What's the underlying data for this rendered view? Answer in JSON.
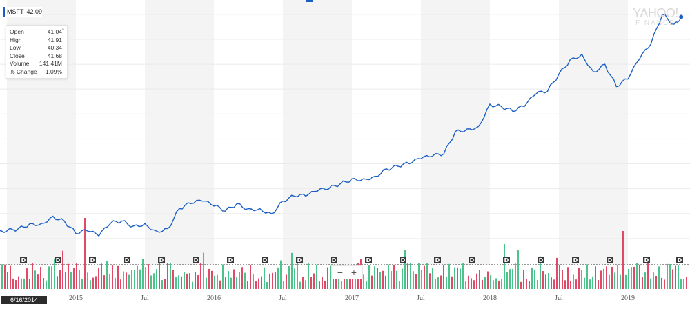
{
  "ticker": {
    "symbol": "MSFT",
    "last_price": "42.09"
  },
  "tooltip": {
    "rows": [
      {
        "label": "Open",
        "value": "41.04"
      },
      {
        "label": "High",
        "value": "41.91"
      },
      {
        "label": "Low",
        "value": "40.34"
      },
      {
        "label": "Close",
        "value": "41.68"
      },
      {
        "label": "Volume",
        "value": "141.41M"
      },
      {
        "label": "% Change",
        "value": "1.09%"
      }
    ],
    "close_glyph": "×"
  },
  "logo": {
    "line1": "YAHOO!",
    "line2": "FINANCE"
  },
  "zoom": {
    "minus": "−",
    "plus": "+"
  },
  "crosshair_date": "6/16/2014",
  "colors": {
    "line": "#1a5fc4",
    "volume_up": "#4cc38a",
    "volume_down": "#e04a66",
    "band": "#f4f4f4"
  },
  "chart_data": {
    "type": "line",
    "title": "",
    "xlabel": "",
    "ylabel": "",
    "x_range": [
      "2014-06",
      "2019-05"
    ],
    "y_range_approx": [
      38,
      130
    ],
    "x_tick_labels": [
      "2015",
      "Jul",
      "2016",
      "Jul",
      "2017",
      "Jul",
      "2018",
      "Jul",
      "2019"
    ],
    "grid": true,
    "series": [
      {
        "values": [
          {
            "x": "2014-06",
            "y": 42
          },
          {
            "x": "2014-07",
            "y": 43
          },
          {
            "x": "2014-08",
            "y": 44
          },
          {
            "x": "2014-09",
            "y": 46
          },
          {
            "x": "2014-10",
            "y": 46
          },
          {
            "x": "2014-11",
            "y": 49
          },
          {
            "x": "2014-12",
            "y": 47
          },
          {
            "x": "2015-01",
            "y": 42
          },
          {
            "x": "2015-02",
            "y": 43
          },
          {
            "x": "2015-03",
            "y": 41
          },
          {
            "x": "2015-04",
            "y": 46
          },
          {
            "x": "2015-05",
            "y": 47
          },
          {
            "x": "2015-06",
            "y": 45
          },
          {
            "x": "2015-07",
            "y": 46
          },
          {
            "x": "2015-08",
            "y": 43
          },
          {
            "x": "2015-09",
            "y": 44
          },
          {
            "x": "2015-10",
            "y": 52
          },
          {
            "x": "2015-11",
            "y": 54
          },
          {
            "x": "2015-12",
            "y": 55
          },
          {
            "x": "2016-01",
            "y": 53
          },
          {
            "x": "2016-02",
            "y": 51
          },
          {
            "x": "2016-03",
            "y": 54
          },
          {
            "x": "2016-04",
            "y": 52
          },
          {
            "x": "2016-05",
            "y": 52
          },
          {
            "x": "2016-06",
            "y": 50
          },
          {
            "x": "2016-07",
            "y": 55
          },
          {
            "x": "2016-08",
            "y": 57
          },
          {
            "x": "2016-09",
            "y": 57
          },
          {
            "x": "2016-10",
            "y": 59
          },
          {
            "x": "2016-11",
            "y": 60
          },
          {
            "x": "2016-12",
            "y": 62
          },
          {
            "x": "2017-01",
            "y": 64
          },
          {
            "x": "2017-02",
            "y": 64
          },
          {
            "x": "2017-03",
            "y": 65
          },
          {
            "x": "2017-04",
            "y": 68
          },
          {
            "x": "2017-05",
            "y": 69
          },
          {
            "x": "2017-06",
            "y": 70
          },
          {
            "x": "2017-07",
            "y": 72
          },
          {
            "x": "2017-08",
            "y": 73
          },
          {
            "x": "2017-09",
            "y": 74
          },
          {
            "x": "2017-10",
            "y": 83
          },
          {
            "x": "2017-11",
            "y": 84
          },
          {
            "x": "2017-12",
            "y": 85
          },
          {
            "x": "2018-01",
            "y": 94
          },
          {
            "x": "2018-02",
            "y": 93
          },
          {
            "x": "2018-03",
            "y": 91
          },
          {
            "x": "2018-04",
            "y": 93
          },
          {
            "x": "2018-05",
            "y": 98
          },
          {
            "x": "2018-06",
            "y": 99
          },
          {
            "x": "2018-07",
            "y": 106
          },
          {
            "x": "2018-08",
            "y": 112
          },
          {
            "x": "2018-09",
            "y": 114
          },
          {
            "x": "2018-10",
            "y": 107
          },
          {
            "x": "2018-11",
            "y": 110
          },
          {
            "x": "2018-12",
            "y": 101
          },
          {
            "x": "2019-01",
            "y": 104
          },
          {
            "x": "2019-02",
            "y": 112
          },
          {
            "x": "2019-03",
            "y": 118
          },
          {
            "x": "2019-04",
            "y": 130
          },
          {
            "x": "2019-05",
            "y": 126
          },
          {
            "x": "2019-05-20",
            "y": 129
          }
        ]
      }
    ],
    "volume": {
      "up_color": "#4cc38a",
      "down_color": "#e04a66"
    },
    "dividend_marker_label": "D"
  }
}
